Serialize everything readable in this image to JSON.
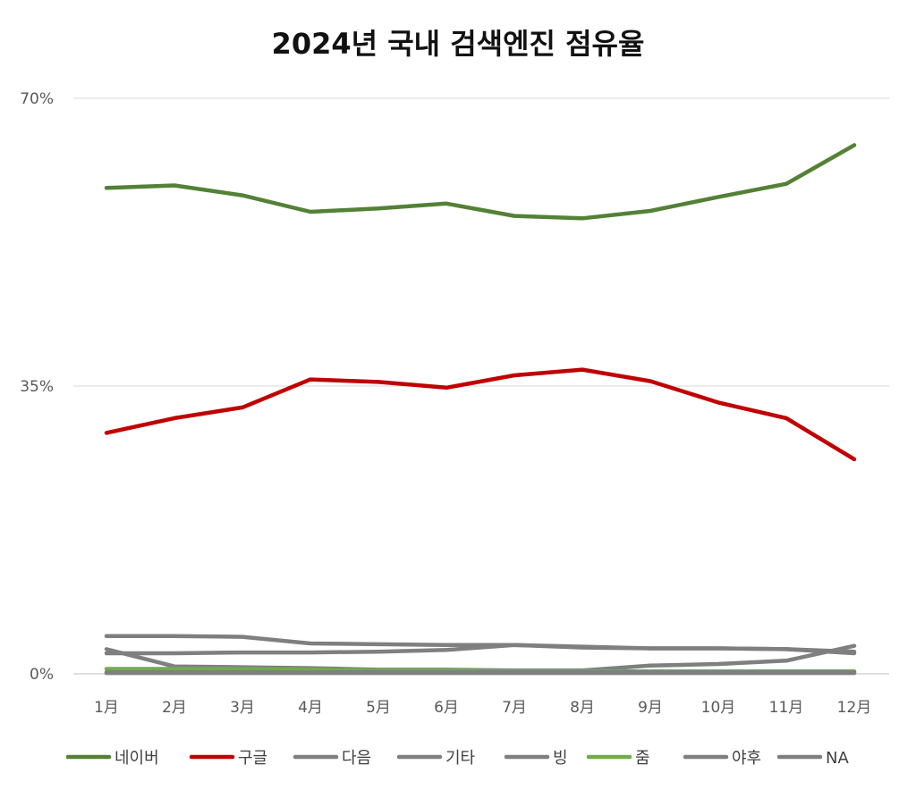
{
  "chart_data": {
    "type": "line",
    "title": "2024년 국내 검색엔진 점유율",
    "xlabel": "",
    "ylabel": "",
    "categories": [
      "1月",
      "2月",
      "3月",
      "4月",
      "5月",
      "6月",
      "7月",
      "8月",
      "9月",
      "10月",
      "11月",
      "12月"
    ],
    "yticks": [
      "0%",
      "35%",
      "70%"
    ],
    "ylim": [
      0,
      70
    ],
    "grid": true,
    "legend_position": "bottom",
    "series": [
      {
        "name": "네이버",
        "color": "#538135",
        "values": [
          59.1,
          59.4,
          58.2,
          56.2,
          56.6,
          57.2,
          55.7,
          55.4,
          56.3,
          58.0,
          59.6,
          64.3
        ]
      },
      {
        "name": "구글",
        "color": "#C00000",
        "values": [
          29.3,
          31.1,
          32.4,
          35.8,
          35.5,
          34.8,
          36.3,
          37.0,
          35.6,
          33.0,
          31.1,
          26.1
        ]
      },
      {
        "name": "다음",
        "color": "#7F7F7F",
        "values": [
          4.6,
          4.6,
          4.5,
          3.7,
          3.6,
          3.5,
          3.5,
          3.2,
          3.1,
          3.1,
          3.0,
          2.7
        ]
      },
      {
        "name": "기타",
        "color": "#7F7F7F",
        "values": [
          2.5,
          2.5,
          2.6,
          2.6,
          2.7,
          2.9,
          3.5,
          3.3,
          3.1,
          3.1,
          3.0,
          2.5
        ]
      },
      {
        "name": "빙",
        "color": "#7F7F7F",
        "values": [
          3.0,
          0.9,
          0.8,
          0.7,
          0.5,
          0.5,
          0.4,
          0.4,
          1.0,
          1.2,
          1.6,
          3.4
        ]
      },
      {
        "name": "줌",
        "color": "#70AD47",
        "values": [
          0.6,
          0.6,
          0.6,
          0.5,
          0.4,
          0.4,
          0.3,
          0.3,
          0.3,
          0.3,
          0.3,
          0.3
        ]
      },
      {
        "name": "야후",
        "color": "#7F7F7F",
        "values": [
          0.2,
          0.2,
          0.2,
          0.2,
          0.2,
          0.2,
          0.2,
          0.2,
          0.2,
          0.2,
          0.2,
          0.2
        ]
      },
      {
        "name": "NA",
        "color": "#7F7F7F",
        "values": [
          0.1,
          0.1,
          0.1,
          0.1,
          0.1,
          0.1,
          0.1,
          0.1,
          0.1,
          0.1,
          0.1,
          0.1
        ]
      }
    ]
  }
}
